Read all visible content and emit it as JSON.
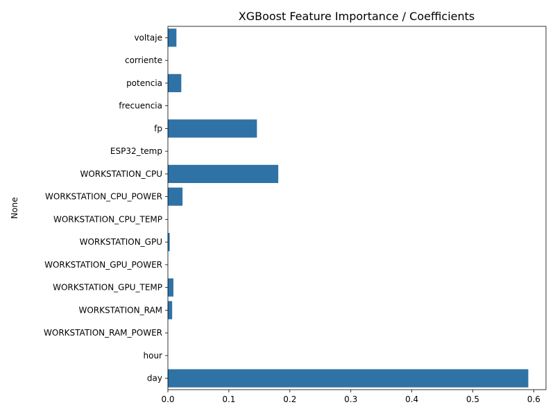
{
  "chart_data": {
    "type": "bar",
    "orientation": "horizontal",
    "title": "XGBoost Feature Importance / Coefficients",
    "xlabel": "",
    "ylabel": "None",
    "categories": [
      "voltaje",
      "corriente",
      "potencia",
      "frecuencia",
      "fp",
      "ESP32_temp",
      "WORKSTATION_CPU",
      "WORKSTATION_CPU_POWER",
      "WORKSTATION_CPU_TEMP",
      "WORKSTATION_GPU",
      "WORKSTATION_GPU_POWER",
      "WORKSTATION_GPU_TEMP",
      "WORKSTATION_RAM",
      "WORKSTATION_RAM_POWER",
      "hour",
      "day"
    ],
    "values": [
      0.014,
      0.0,
      0.022,
      0.0,
      0.146,
      0.0,
      0.181,
      0.024,
      0.0,
      0.003,
      0.0,
      0.009,
      0.007,
      0.0,
      0.0,
      0.591
    ],
    "xlim": [
      0,
      0.62
    ],
    "xticks": [
      0,
      0.1,
      0.2,
      0.3,
      0.4,
      0.5,
      0.6
    ],
    "xtick_labels": [
      "0.0",
      "0.1",
      "0.2",
      "0.3",
      "0.4",
      "0.5",
      "0.6"
    ],
    "bar_color": "#2f72a6",
    "grid": false,
    "legend": "none"
  }
}
